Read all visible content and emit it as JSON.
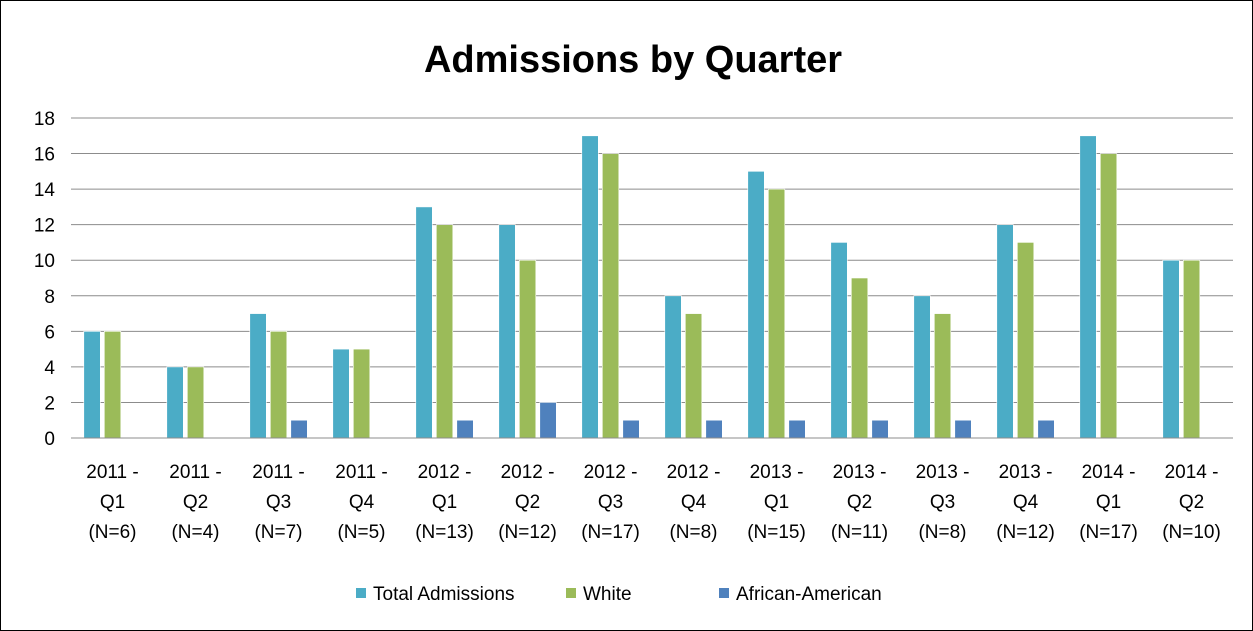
{
  "chart_data": {
    "type": "bar",
    "title": "Admissions by Quarter",
    "xlabel": "",
    "ylabel": "",
    "ylim": [
      0,
      18
    ],
    "yticks": [
      0,
      2,
      4,
      6,
      8,
      10,
      12,
      14,
      16,
      18
    ],
    "grid": true,
    "legend_position": "bottom",
    "categories": [
      [
        "2011 -",
        "Q1",
        "(N=6)"
      ],
      [
        "2011 -",
        "Q2",
        "(N=4)"
      ],
      [
        "2011 -",
        "Q3",
        "(N=7)"
      ],
      [
        "2011 -",
        "Q4",
        "(N=5)"
      ],
      [
        "2012 -",
        "Q1",
        "(N=13)"
      ],
      [
        "2012 -",
        "Q2",
        "(N=12)"
      ],
      [
        "2012 -",
        "Q3",
        "(N=17)"
      ],
      [
        "2012 -",
        "Q4",
        "(N=8)"
      ],
      [
        "2013 -",
        "Q1",
        "(N=15)"
      ],
      [
        "2013 -",
        "Q2",
        "(N=11)"
      ],
      [
        "2013 -",
        "Q3",
        "(N=8)"
      ],
      [
        "2013 -",
        "Q4",
        "(N=12)"
      ],
      [
        "2014 -",
        "Q1",
        "(N=17)"
      ],
      [
        "2014 -",
        "Q2",
        "(N=10)"
      ]
    ],
    "series": [
      {
        "name": "Total Admissions",
        "color": "#4BACC6",
        "values": [
          6,
          4,
          7,
          5,
          13,
          12,
          17,
          8,
          15,
          11,
          8,
          12,
          17,
          10
        ]
      },
      {
        "name": "White",
        "color": "#9BBB59",
        "values": [
          6,
          4,
          6,
          5,
          12,
          10,
          16,
          7,
          14,
          9,
          7,
          11,
          16,
          10
        ]
      },
      {
        "name": "African-American",
        "color": "#4F81BD",
        "values": [
          0,
          0,
          1,
          0,
          1,
          2,
          1,
          1,
          1,
          1,
          1,
          1,
          0,
          0
        ]
      }
    ]
  }
}
